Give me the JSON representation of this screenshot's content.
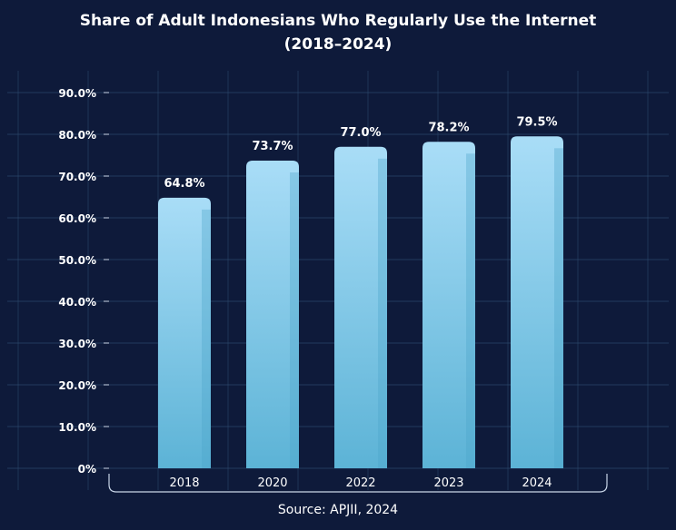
{
  "chart_data": {
    "type": "bar",
    "title_line1": "Share of Adult Indonesians Who Regularly Use the Internet",
    "title_line2": "(2018–2024)",
    "categories": [
      "2018",
      "2020",
      "2022",
      "2023",
      "2024"
    ],
    "values": [
      64.8,
      73.7,
      77.0,
      78.2,
      79.5
    ],
    "value_labels": [
      "64.8%",
      "73.7%",
      "77.0%",
      "78.2%",
      "79.5%"
    ],
    "y_ticks": [
      0,
      10,
      20,
      30,
      40,
      50,
      60,
      70,
      80,
      90
    ],
    "y_tick_labels": [
      "0%",
      "10.0%",
      "20.0%",
      "30.0%",
      "40.0%",
      "50.0%",
      "60.0%",
      "70.0%",
      "80.0%",
      "90.0%"
    ],
    "ylim": [
      0,
      90
    ],
    "xlabel": "",
    "ylabel": "",
    "grid": true,
    "source": "Source: APJII, 2024"
  },
  "colors": {
    "background": "#0e1a3a",
    "bar_top": "#a9ddf7",
    "bar_bottom": "#5cb3d6",
    "bar_shade": "#4ba4c9",
    "grid": "#2c4a6e",
    "text": "#ffffff"
  }
}
